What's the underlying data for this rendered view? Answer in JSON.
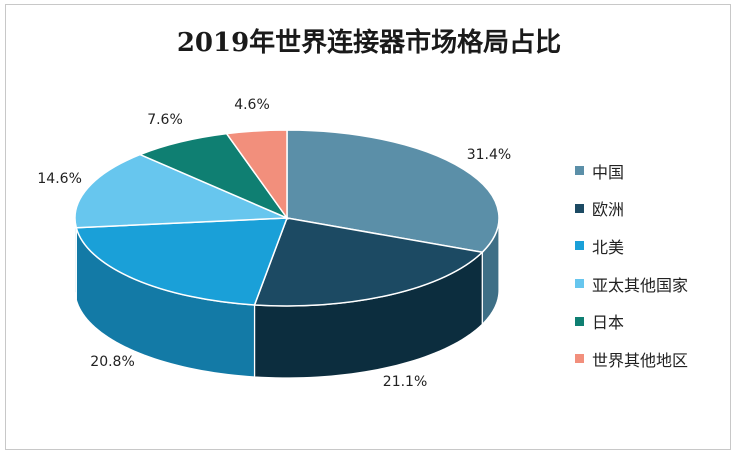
{
  "chart_data": {
    "type": "pie",
    "title": "2019年世界连接器市场格局占比",
    "categories": [
      "中国",
      "欧洲",
      "北美",
      "亚太其他国家",
      "日本",
      "世界其他地区"
    ],
    "values": [
      31.4,
      21.1,
      20.8,
      14.6,
      7.6,
      4.6
    ],
    "value_labels": [
      "31.4%",
      "21.1%",
      "20.8%",
      "14.6%",
      "7.6%",
      "4.6%"
    ],
    "colors": [
      "#5b8fa8",
      "#1c4a63",
      "#1aa0d8",
      "#67c6ee",
      "#0f7f72",
      "#f28f7c"
    ],
    "side_colors": [
      "#3e6f86",
      "#0c2d3e",
      "#137aa6",
      "#4aa4c9",
      "#0a5d53",
      "#c06e5f"
    ],
    "legend_position": "right"
  }
}
